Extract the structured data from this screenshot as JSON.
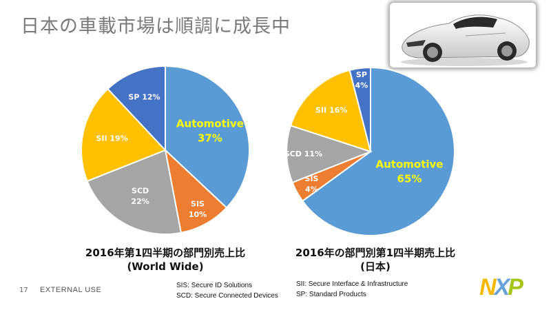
{
  "title": "日本の車載市場は順調に成長中",
  "colors": {
    "automotive": "#5b9bd5",
    "sis": "#ed7d31",
    "scd": "#a5a5a5",
    "sii": "#ffc000",
    "sp": "#4472c4",
    "label_white": "#ffffff",
    "label_yellow": "#ffff00"
  },
  "chart_data": [
    {
      "type": "pie",
      "title": "2016年第1四半期の部門別売上比",
      "subtitle": "(World Wide)",
      "categories": [
        "Automotive",
        "SIS",
        "SCD",
        "SII",
        "SP"
      ],
      "values": [
        37,
        10,
        22,
        19,
        12
      ],
      "value_labels": [
        "37%",
        "10%",
        "22%",
        "19%",
        "12%"
      ]
    },
    {
      "type": "pie",
      "title": "2016年の部門別第1四半期売上比",
      "subtitle": "(日本)",
      "categories": [
        "Automotive",
        "SIS",
        "SCD",
        "SII",
        "SP"
      ],
      "values": [
        65,
        4,
        11,
        16,
        4
      ],
      "value_labels": [
        "65%",
        "4%",
        "11%",
        "16%",
        "4%"
      ]
    }
  ],
  "footer": {
    "page_number": "17",
    "classification": "EXTERNAL USE",
    "legend_left": [
      "SIS: Secure ID Solutions",
      "SCD: Secure Connected Devices"
    ],
    "legend_right": [
      "SII: Secure Interface & Infrastructure",
      "SP: Standard Products"
    ],
    "logo_letters": [
      "N",
      "X",
      "P"
    ]
  }
}
